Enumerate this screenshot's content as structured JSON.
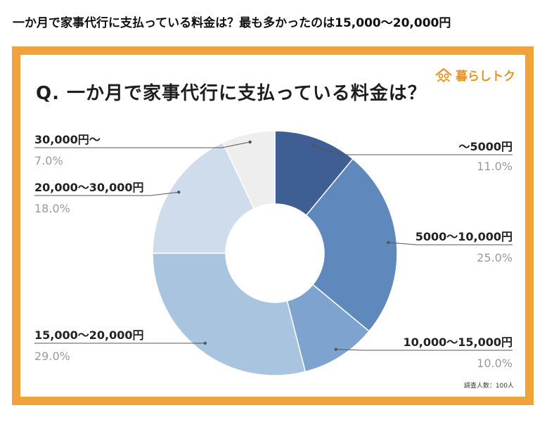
{
  "headline": "一か月で家事代行に支払っている料金は？最も多かったのは15,000～20,000円",
  "card": {
    "logo_text": "暮らしトク",
    "question": "Q. 一か月で家事代行に支払っている料金は？",
    "footnote": "調査人数：100人"
  },
  "colors": {
    "frame": "#f0a33a",
    "logo": "#e79423"
  },
  "chart_data": {
    "type": "pie",
    "donut": true,
    "start": "12 o'clock",
    "direction": "clockwise",
    "value_unit": "%",
    "slices": [
      {
        "label": "～5000円",
        "value": 11.0,
        "value_text": "11.0%",
        "color": "#3f5e93"
      },
      {
        "label": "5000～10,000円",
        "value": 25.0,
        "value_text": "25.0%",
        "color": "#5f88bc"
      },
      {
        "label": "10,000～15,000円",
        "value": 10.0,
        "value_text": "10.0%",
        "color": "#7fa3cf"
      },
      {
        "label": "15,000～20,000円",
        "value": 29.0,
        "value_text": "29.0%",
        "color": "#a9c4de"
      },
      {
        "label": "20,000～30,000円",
        "value": 18.0,
        "value_text": "18.0%",
        "color": "#cfdcec"
      },
      {
        "label": "30,000円～",
        "value": 7.0,
        "value_text": "7.0%",
        "color": "#eeeeee"
      }
    ]
  }
}
